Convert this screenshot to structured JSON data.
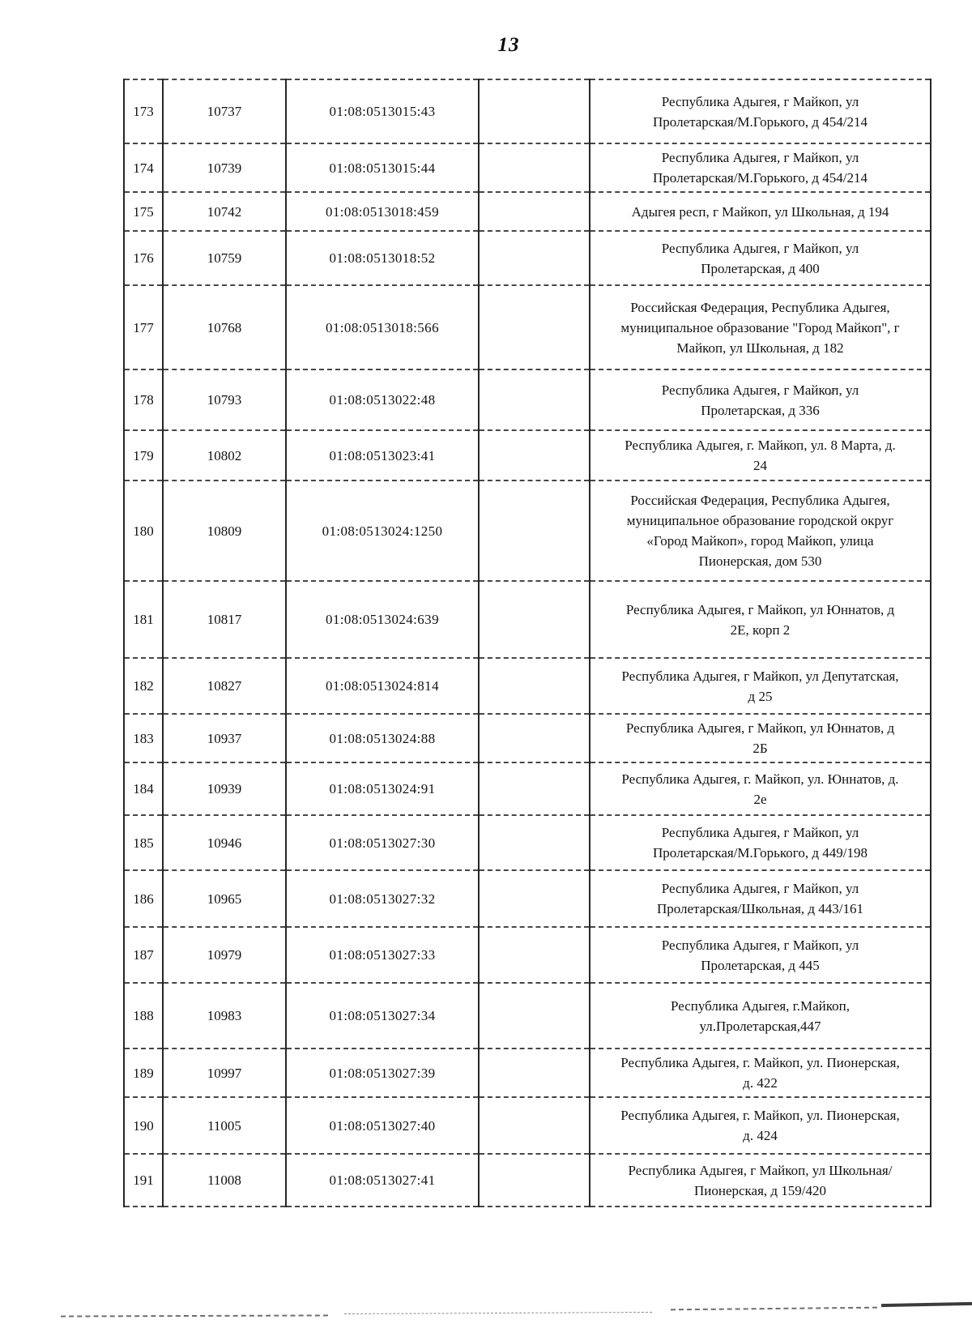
{
  "page_number": "13",
  "table": {
    "columns": [
      "row-number",
      "object-id",
      "cadastral-number",
      "empty",
      "address"
    ],
    "rows": [
      {
        "num": "173",
        "id": "10737",
        "cadastral": "01:08:0513015:43",
        "empty": "",
        "address": "Республика Адыгея, г Майкоп, ул Пролетарская/М.Горького, д 454/214"
      },
      {
        "num": "174",
        "id": "10739",
        "cadastral": "01:08:0513015:44",
        "empty": "",
        "address": "Республика Адыгея, г Майкоп, ул Пролетарская/М.Горького, д 454/214"
      },
      {
        "num": "175",
        "id": "10742",
        "cadastral": "01:08:0513018:459",
        "empty": "",
        "address": "Адыгея респ, г Майкоп, ул Школьная, д 194"
      },
      {
        "num": "176",
        "id": "10759",
        "cadastral": "01:08:0513018:52",
        "empty": "",
        "address": "Республика Адыгея, г Майкоп, ул Пролетарская, д 400"
      },
      {
        "num": "177",
        "id": "10768",
        "cadastral": "01:08:0513018:566",
        "empty": "",
        "address": "Российская Федерация, Республика Адыгея, муниципальное образование \"Город Майкоп\", г Майкоп, ул Школьная, д 182"
      },
      {
        "num": "178",
        "id": "10793",
        "cadastral": "01:08:0513022:48",
        "empty": "",
        "address": "Республика Адыгея, г Майкоп, ул Пролетарская, д 336"
      },
      {
        "num": "179",
        "id": "10802",
        "cadastral": "01:08:0513023:41",
        "empty": "",
        "address": "Республика Адыгея, г. Майкоп, ул. 8 Марта, д. 24"
      },
      {
        "num": "180",
        "id": "10809",
        "cadastral": "01:08:0513024:1250",
        "empty": "",
        "address": "Российская Федерация,  Республика Адыгея,  муниципальное образование городской округ «Город Майкоп»,  город Майкоп, улица Пионерская, дом 530"
      },
      {
        "num": "181",
        "id": "10817",
        "cadastral": "01:08:0513024:639",
        "empty": "",
        "address": "Республика Адыгея, г Майкоп, ул Юннатов, д 2Е, корп 2"
      },
      {
        "num": "182",
        "id": "10827",
        "cadastral": "01:08:0513024:814",
        "empty": "",
        "address": "Республика Адыгея, г Майкоп, ул Депутатская, д 25"
      },
      {
        "num": "183",
        "id": "10937",
        "cadastral": "01:08:0513024:88",
        "empty": "",
        "address": "Республика Адыгея, г Майкоп, ул Юннатов, д 2Б"
      },
      {
        "num": "184",
        "id": "10939",
        "cadastral": "01:08:0513024:91",
        "empty": "",
        "address": "Республика Адыгея, г. Майкоп, ул. Юннатов, д. 2е"
      },
      {
        "num": "185",
        "id": "10946",
        "cadastral": "01:08:0513027:30",
        "empty": "",
        "address": "Республика Адыгея, г Майкоп, ул Пролетарская/М.Горького, д 449/198"
      },
      {
        "num": "186",
        "id": "10965",
        "cadastral": "01:08:0513027:32",
        "empty": "",
        "address": "Республика Адыгея, г Майкоп, ул Пролетарская/Школьная, д 443/161"
      },
      {
        "num": "187",
        "id": "10979",
        "cadastral": "01:08:0513027:33",
        "empty": "",
        "address": "Республика Адыгея, г Майкоп, ул Пролетарская, д 445"
      },
      {
        "num": "188",
        "id": "10983",
        "cadastral": "01:08:0513027:34",
        "empty": "",
        "address": "Республика Адыгея, г.Майкоп, ул.Пролетарская,447"
      },
      {
        "num": "189",
        "id": "10997",
        "cadastral": "01:08:0513027:39",
        "empty": "",
        "address": "Республика Адыгея, г. Майкоп, ул. Пионерская, д. 422"
      },
      {
        "num": "190",
        "id": "11005",
        "cadastral": "01:08:0513027:40",
        "empty": "",
        "address": "Республика Адыгея, г. Майкоп, ул. Пионерская, д. 424"
      },
      {
        "num": "191",
        "id": "11008",
        "cadastral": "01:08:0513027:41",
        "empty": "",
        "address": "Республика Адыгея, г Майкоп, ул Школьная/Пионерская, д 159/420"
      }
    ]
  },
  "scan_marks": [
    "⁄",
    "ˊ",
    "ˊ"
  ]
}
